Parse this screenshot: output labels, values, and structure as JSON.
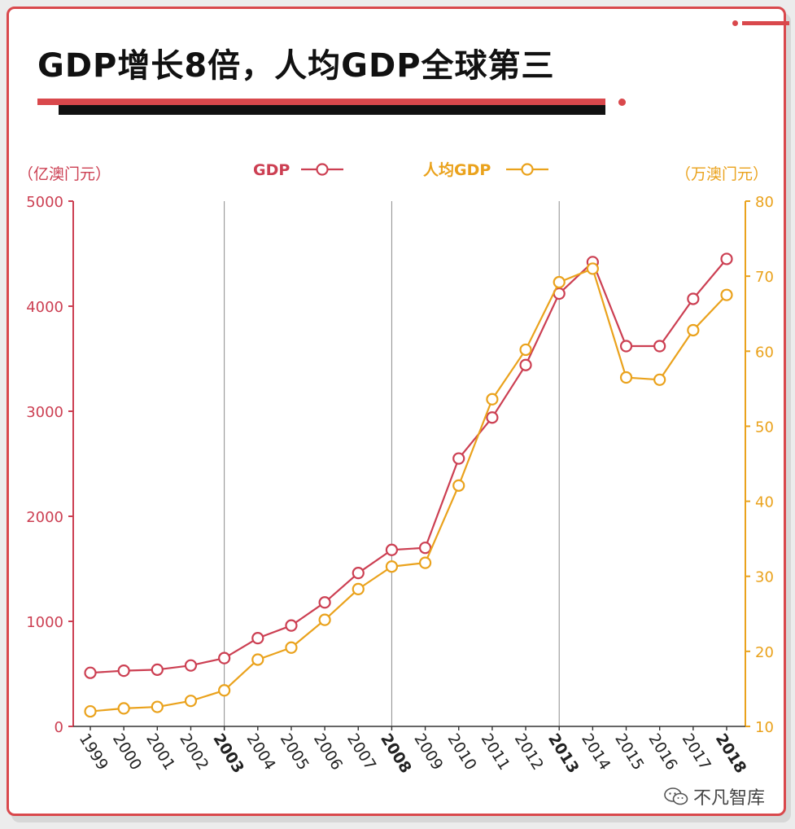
{
  "title": "GDP增长8倍，人均GDP全球第三",
  "watermark": "不凡智库",
  "colors": {
    "gdp": "#cc3f52",
    "per_capita": "#eaa21c",
    "accent": "#d9484c",
    "grid": "#8c8c8c"
  },
  "chart_data": {
    "type": "line",
    "x": [
      "1999",
      "2000",
      "2001",
      "2002",
      "2003",
      "2004",
      "2005",
      "2006",
      "2007",
      "2008",
      "2009",
      "2010",
      "2011",
      "2012",
      "2013",
      "2014",
      "2015",
      "2016",
      "2017",
      "2018"
    ],
    "bold_ticks": [
      "2003",
      "2008",
      "2013",
      "2018"
    ],
    "vertical_gridlines_at": [
      "2003",
      "2008",
      "2013"
    ],
    "legend_placement": "top-center",
    "series": [
      {
        "name": "GDP",
        "axis": "left",
        "color": "#cc3f52",
        "values": [
          510,
          530,
          540,
          580,
          650,
          840,
          960,
          1180,
          1460,
          1680,
          1700,
          2550,
          2940,
          3440,
          4120,
          4420,
          3620,
          3620,
          4070,
          4450
        ]
      },
      {
        "name": "人均GDP",
        "axis": "right",
        "color": "#eaa21c",
        "values": [
          12,
          12.4,
          12.6,
          13.4,
          14.8,
          18.9,
          20.5,
          24.2,
          28.3,
          31.3,
          31.8,
          42.1,
          53.6,
          60.2,
          69.2,
          71.0,
          56.5,
          56.2,
          62.8,
          67.5
        ]
      }
    ],
    "y_left": {
      "unit_label": "（亿澳门元）",
      "range": [
        0,
        5000
      ],
      "ticks": [
        0,
        1000,
        2000,
        3000,
        4000,
        5000
      ]
    },
    "y_right": {
      "unit_label": "（万澳门元）",
      "range": [
        10,
        80
      ],
      "ticks": [
        10,
        20,
        30,
        40,
        50,
        60,
        70,
        80
      ]
    }
  }
}
